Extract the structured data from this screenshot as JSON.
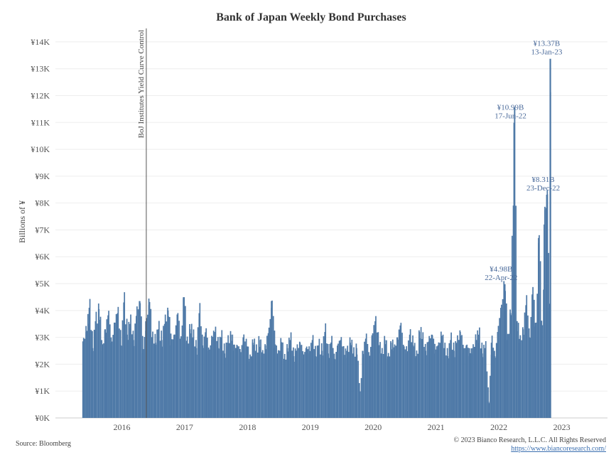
{
  "chart_data": {
    "type": "bar",
    "title": "Bank of Japan Weekly Bond Purchases",
    "ylabel": "Billions of ¥",
    "xlabel": "",
    "ylim": [
      0,
      14500
    ],
    "yticks": [
      "¥0K",
      "¥1K",
      "¥2K",
      "¥3K",
      "¥4K",
      "¥5K",
      "¥6K",
      "¥7K",
      "¥8K",
      "¥9K",
      "¥10K",
      "¥11K",
      "¥12K",
      "¥13K",
      "¥14K"
    ],
    "xticks": [
      "2016",
      "2017",
      "2018",
      "2019",
      "2020",
      "2021",
      "2022",
      "2023"
    ],
    "grid": true,
    "event": {
      "label": "BoJ Institutes Yield Curve Control",
      "year": 2016.72
    },
    "series": [
      {
        "bar_color": "#4e79a7",
        "values": [
          {
            "t": 2015.6,
            "v": 2850
          },
          {
            "t": 2015.65,
            "v": 3200
          },
          {
            "t": 2015.7,
            "v": 4100
          },
          {
            "t": 2015.75,
            "v": 2600
          },
          {
            "t": 2015.8,
            "v": 3600
          },
          {
            "t": 2015.85,
            "v": 4050
          },
          {
            "t": 2015.9,
            "v": 2500
          },
          {
            "t": 2015.95,
            "v": 3300
          },
          {
            "t": 2016.0,
            "v": 3700
          },
          {
            "t": 2016.05,
            "v": 2800
          },
          {
            "t": 2016.1,
            "v": 3400
          },
          {
            "t": 2016.15,
            "v": 3900
          },
          {
            "t": 2016.2,
            "v": 2700
          },
          {
            "t": 2016.25,
            "v": 4300
          },
          {
            "t": 2016.3,
            "v": 3100
          },
          {
            "t": 2016.35,
            "v": 3500
          },
          {
            "t": 2016.4,
            "v": 2900
          },
          {
            "t": 2016.45,
            "v": 3800
          },
          {
            "t": 2016.5,
            "v": 4350
          },
          {
            "t": 2016.55,
            "v": 2400
          },
          {
            "t": 2016.6,
            "v": 3600
          },
          {
            "t": 2016.65,
            "v": 4200
          },
          {
            "t": 2016.7,
            "v": 3000
          },
          {
            "t": 2016.75,
            "v": 2800
          },
          {
            "t": 2016.8,
            "v": 3300
          },
          {
            "t": 2016.85,
            "v": 2900
          },
          {
            "t": 2016.9,
            "v": 3500
          },
          {
            "t": 2016.95,
            "v": 4000
          },
          {
            "t": 2017.0,
            "v": 2700
          },
          {
            "t": 2017.05,
            "v": 3100
          },
          {
            "t": 2017.1,
            "v": 3700
          },
          {
            "t": 2017.15,
            "v": 2900
          },
          {
            "t": 2017.2,
            "v": 4450
          },
          {
            "t": 2017.25,
            "v": 2800
          },
          {
            "t": 2017.3,
            "v": 3300
          },
          {
            "t": 2017.35,
            "v": 3000
          },
          {
            "t": 2017.4,
            "v": 2600
          },
          {
            "t": 2017.45,
            "v": 3900
          },
          {
            "t": 2017.5,
            "v": 2700
          },
          {
            "t": 2017.55,
            "v": 3100
          },
          {
            "t": 2017.6,
            "v": 2500
          },
          {
            "t": 2017.65,
            "v": 2900
          },
          {
            "t": 2017.7,
            "v": 3200
          },
          {
            "t": 2017.75,
            "v": 2600
          },
          {
            "t": 2017.8,
            "v": 3000
          },
          {
            "t": 2017.85,
            "v": 2400
          },
          {
            "t": 2017.9,
            "v": 2800
          },
          {
            "t": 2017.95,
            "v": 3100
          },
          {
            "t": 2018.0,
            "v": 2500
          },
          {
            "t": 2018.05,
            "v": 2700
          },
          {
            "t": 2018.1,
            "v": 2300
          },
          {
            "t": 2018.15,
            "v": 3000
          },
          {
            "t": 2018.2,
            "v": 2600
          },
          {
            "t": 2018.25,
            "v": 2200
          },
          {
            "t": 2018.3,
            "v": 2800
          },
          {
            "t": 2018.35,
            "v": 2500
          },
          {
            "t": 2018.4,
            "v": 2900
          },
          {
            "t": 2018.45,
            "v": 2300
          },
          {
            "t": 2018.5,
            "v": 2700
          },
          {
            "t": 2018.55,
            "v": 3100
          },
          {
            "t": 2018.6,
            "v": 4350
          },
          {
            "t": 2018.65,
            "v": 2600
          },
          {
            "t": 2018.7,
            "v": 2400
          },
          {
            "t": 2018.75,
            "v": 2800
          },
          {
            "t": 2018.8,
            "v": 2200
          },
          {
            "t": 2018.85,
            "v": 2600
          },
          {
            "t": 2018.9,
            "v": 2900
          },
          {
            "t": 2018.95,
            "v": 2300
          },
          {
            "t": 2019.0,
            "v": 2500
          },
          {
            "t": 2019.05,
            "v": 2800
          },
          {
            "t": 2019.1,
            "v": 2200
          },
          {
            "t": 2019.15,
            "v": 2600
          },
          {
            "t": 2019.2,
            "v": 2400
          },
          {
            "t": 2019.25,
            "v": 2900
          },
          {
            "t": 2019.3,
            "v": 2300
          },
          {
            "t": 2019.35,
            "v": 2700
          },
          {
            "t": 2019.4,
            "v": 2500
          },
          {
            "t": 2019.45,
            "v": 3200
          },
          {
            "t": 2019.5,
            "v": 2400
          },
          {
            "t": 2019.55,
            "v": 2800
          },
          {
            "t": 2019.6,
            "v": 2200
          },
          {
            "t": 2019.65,
            "v": 2600
          },
          {
            "t": 2019.7,
            "v": 2900
          },
          {
            "t": 2019.75,
            "v": 2300
          },
          {
            "t": 2019.8,
            "v": 2500
          },
          {
            "t": 2019.85,
            "v": 2800
          },
          {
            "t": 2019.9,
            "v": 2400
          },
          {
            "t": 2019.95,
            "v": 2600
          },
          {
            "t": 2020.0,
            "v": 900
          },
          {
            "t": 2020.05,
            "v": 2500
          },
          {
            "t": 2020.1,
            "v": 2900
          },
          {
            "t": 2020.15,
            "v": 2300
          },
          {
            "t": 2020.2,
            "v": 3000
          },
          {
            "t": 2020.25,
            "v": 3600
          },
          {
            "t": 2020.3,
            "v": 2700
          },
          {
            "t": 2020.35,
            "v": 2400
          },
          {
            "t": 2020.4,
            "v": 2900
          },
          {
            "t": 2020.45,
            "v": 2200
          },
          {
            "t": 2020.5,
            "v": 2800
          },
          {
            "t": 2020.55,
            "v": 2500
          },
          {
            "t": 2020.6,
            "v": 3000
          },
          {
            "t": 2020.65,
            "v": 3300
          },
          {
            "t": 2020.7,
            "v": 2600
          },
          {
            "t": 2020.75,
            "v": 2400
          },
          {
            "t": 2020.8,
            "v": 3100
          },
          {
            "t": 2020.85,
            "v": 2700
          },
          {
            "t": 2020.9,
            "v": 2300
          },
          {
            "t": 2020.95,
            "v": 3200
          },
          {
            "t": 2021.0,
            "v": 2900
          },
          {
            "t": 2021.05,
            "v": 2500
          },
          {
            "t": 2021.1,
            "v": 2800
          },
          {
            "t": 2021.15,
            "v": 3100
          },
          {
            "t": 2021.2,
            "v": 2400
          },
          {
            "t": 2021.25,
            "v": 2700
          },
          {
            "t": 2021.3,
            "v": 3000
          },
          {
            "t": 2021.35,
            "v": 2600
          },
          {
            "t": 2021.4,
            "v": 2300
          },
          {
            "t": 2021.45,
            "v": 2900
          },
          {
            "t": 2021.5,
            "v": 2500
          },
          {
            "t": 2021.55,
            "v": 2800
          },
          {
            "t": 2021.6,
            "v": 3200
          },
          {
            "t": 2021.65,
            "v": 2400
          },
          {
            "t": 2021.7,
            "v": 2700
          },
          {
            "t": 2021.75,
            "v": 2300
          },
          {
            "t": 2021.8,
            "v": 2600
          },
          {
            "t": 2021.85,
            "v": 2900
          },
          {
            "t": 2021.9,
            "v": 3100
          },
          {
            "t": 2021.95,
            "v": 2400
          },
          {
            "t": 2022.0,
            "v": 2600
          },
          {
            "t": 2022.05,
            "v": 600
          },
          {
            "t": 2022.1,
            "v": 2800
          },
          {
            "t": 2022.15,
            "v": 2300
          },
          {
            "t": 2022.2,
            "v": 3200
          },
          {
            "t": 2022.25,
            "v": 4100
          },
          {
            "t": 2022.31,
            "v": 4980
          },
          {
            "t": 2022.35,
            "v": 2900
          },
          {
            "t": 2022.4,
            "v": 3900
          },
          {
            "t": 2022.46,
            "v": 10990
          },
          {
            "t": 2022.5,
            "v": 3500
          },
          {
            "t": 2022.55,
            "v": 2800
          },
          {
            "t": 2022.6,
            "v": 3300
          },
          {
            "t": 2022.65,
            "v": 4200
          },
          {
            "t": 2022.7,
            "v": 3000
          },
          {
            "t": 2022.75,
            "v": 4600
          },
          {
            "t": 2022.8,
            "v": 3400
          },
          {
            "t": 2022.85,
            "v": 6700
          },
          {
            "t": 2022.9,
            "v": 3200
          },
          {
            "t": 2022.94,
            "v": 7200
          },
          {
            "t": 2022.98,
            "v": 8310
          },
          {
            "t": 2023.01,
            "v": 4100
          },
          {
            "t": 2023.035,
            "v": 13370
          }
        ]
      }
    ],
    "annotations": [
      {
        "value_label": "¥4.98B",
        "date": "22-Apr-22",
        "t": 2022.31,
        "v": 4980
      },
      {
        "value_label": "¥10.99B",
        "date": "17-Jun-22",
        "t": 2022.46,
        "v": 10990
      },
      {
        "value_label": "¥8.31B",
        "date": "23-Dec-22",
        "t": 2022.98,
        "v": 8310
      },
      {
        "value_label": "¥13.37B",
        "date": "13-Jan-23",
        "t": 2023.035,
        "v": 13370
      }
    ]
  },
  "footer": {
    "source": "Source: Bloomberg",
    "copyright": "© 2023 Bianco Research, L.L.C. All Rights Reserved",
    "url": "https://www.biancoresearch.com/"
  }
}
